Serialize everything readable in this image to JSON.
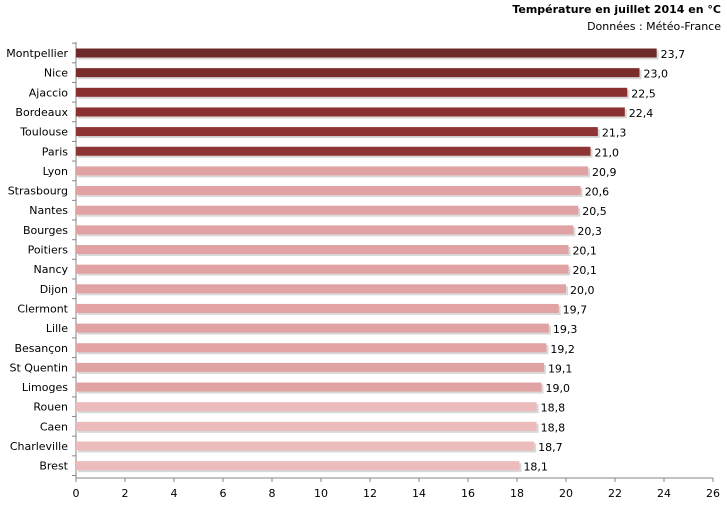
{
  "chart_data": {
    "type": "bar",
    "orientation": "horizontal",
    "title": "Température en juillet 2014 en °C",
    "subtitle": "Données : Météo-France",
    "categories": [
      "Montpellier",
      "Nice",
      "Ajaccio",
      "Bordeaux",
      "Toulouse",
      "Paris",
      "Lyon",
      "Strasbourg",
      "Nantes",
      "Bourges",
      "Poitiers",
      "Nancy",
      "Dijon",
      "Clermont",
      "Lille",
      "Besançon",
      "St Quentin",
      "Limoges",
      "Rouen",
      "Caen",
      "Charleville",
      "Brest"
    ],
    "values": [
      23.7,
      23.0,
      22.5,
      22.4,
      21.3,
      21.0,
      20.9,
      20.6,
      20.5,
      20.3,
      20.1,
      20.1,
      20.0,
      19.7,
      19.3,
      19.2,
      19.1,
      19.0,
      18.8,
      18.8,
      18.7,
      18.1
    ],
    "value_labels": [
      "23,7",
      "23,0",
      "22,5",
      "22,4",
      "21,3",
      "21,0",
      "20,9",
      "20,6",
      "20,5",
      "20,3",
      "20,1",
      "20,1",
      "20,0",
      "19,7",
      "19,3",
      "19,2",
      "19,1",
      "19,0",
      "18,8",
      "18,8",
      "18,7",
      "18,1"
    ],
    "bar_colors": [
      "#6e2a2a",
      "#7a2b2b",
      "#8b3030",
      "#8b3030",
      "#8e3434",
      "#8e3434",
      "#e0a2a2",
      "#e0a2a2",
      "#e0a2a2",
      "#e0a2a2",
      "#e0a2a2",
      "#e0a2a2",
      "#e0a2a2",
      "#e0a2a2",
      "#e0a2a2",
      "#e0a2a2",
      "#e0a2a2",
      "#e0a2a2",
      "#ecbcbc",
      "#ecbcbc",
      "#ecbcbc",
      "#ecbcbc"
    ],
    "xlim": [
      0,
      26
    ],
    "xticks": [
      0,
      2,
      4,
      6,
      8,
      10,
      12,
      14,
      16,
      18,
      20,
      22,
      24,
      26
    ],
    "grid": false,
    "legend": "none"
  }
}
